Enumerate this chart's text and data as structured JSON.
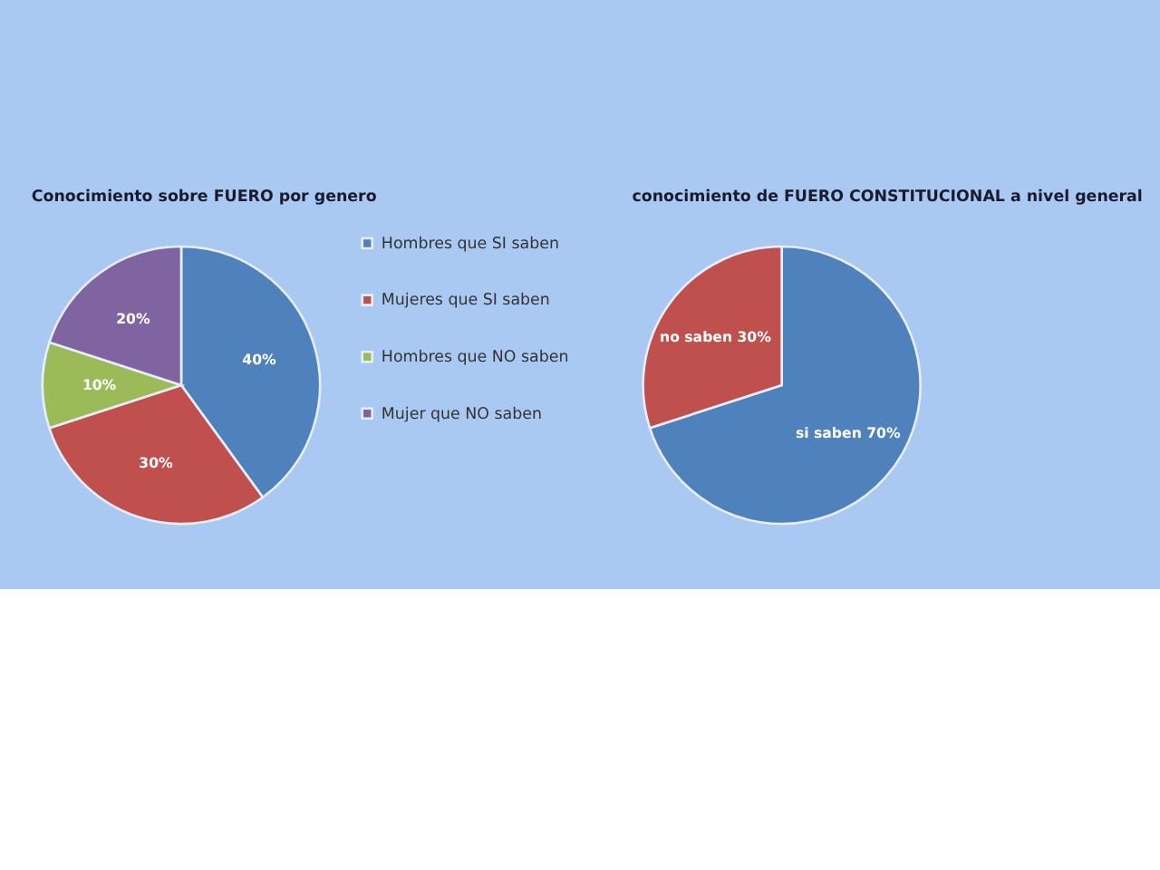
{
  "chart_data": [
    {
      "type": "pie",
      "title": "Conocimiento sobre FUERO por genero",
      "categories": [
        "Hombres  que SI saben",
        "Mujeres que SI saben",
        "Hombres que NO saben",
        "Mujer que NO saben"
      ],
      "values": [
        40,
        30,
        10,
        20
      ],
      "colors": [
        "#4f81bd",
        "#c0504d",
        "#9bbb59",
        "#8064a2"
      ],
      "value_labels": [
        "40%",
        "30%",
        "10%",
        "20%"
      ],
      "legend": "right"
    },
    {
      "type": "pie",
      "title": "conocimiento de FUERO CONSTITUCIONAL a nivel general",
      "categories": [
        "si saben",
        "no saben"
      ],
      "values": [
        70,
        30
      ],
      "colors": [
        "#4f81bd",
        "#c0504d"
      ],
      "value_labels": [
        "70%",
        "30%"
      ],
      "legend": false
    }
  ]
}
